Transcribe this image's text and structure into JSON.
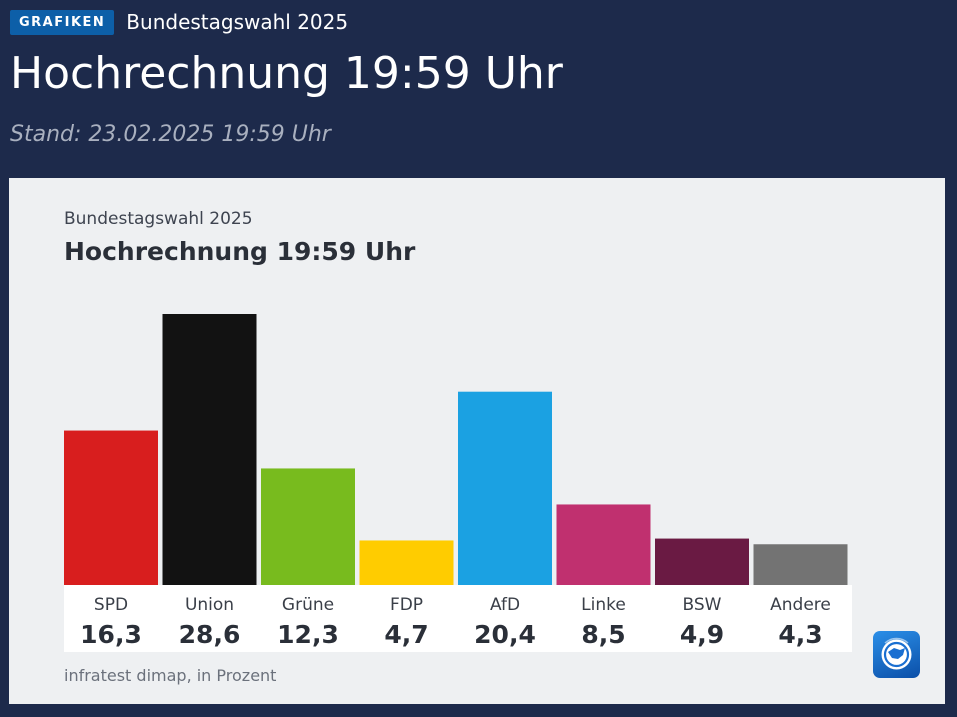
{
  "header": {
    "badge": "GRAFIKEN",
    "section": "Bundestagswahl 2025",
    "headline": "Hochrechnung 19:59 Uhr",
    "stand": "Stand: 23.02.2025 19:59 Uhr"
  },
  "brand_icon": "tagesschau-logo-icon",
  "chart_data": {
    "type": "bar",
    "subtitle": "Bundestagswahl 2025",
    "title": "Hochrechnung 19:59 Uhr",
    "categories": [
      "SPD",
      "Union",
      "Grüne",
      "FDP",
      "AfD",
      "Linke",
      "BSW",
      "Andere"
    ],
    "values": [
      16.3,
      28.6,
      12.3,
      4.7,
      20.4,
      8.5,
      4.9,
      4.3
    ],
    "value_labels": [
      "16,3",
      "28,6",
      "12,3",
      "4,7",
      "20,4",
      "8,5",
      "4,9",
      "4,3"
    ],
    "colors": [
      "#d81e1e",
      "#121212",
      "#78bb1e",
      "#ffcc00",
      "#1ba1e2",
      "#c0306f",
      "#6a1a43",
      "#737373"
    ],
    "ylim": [
      0,
      28.6
    ],
    "grid": false,
    "legend": "none",
    "source": "infratest dimap, in Prozent"
  }
}
